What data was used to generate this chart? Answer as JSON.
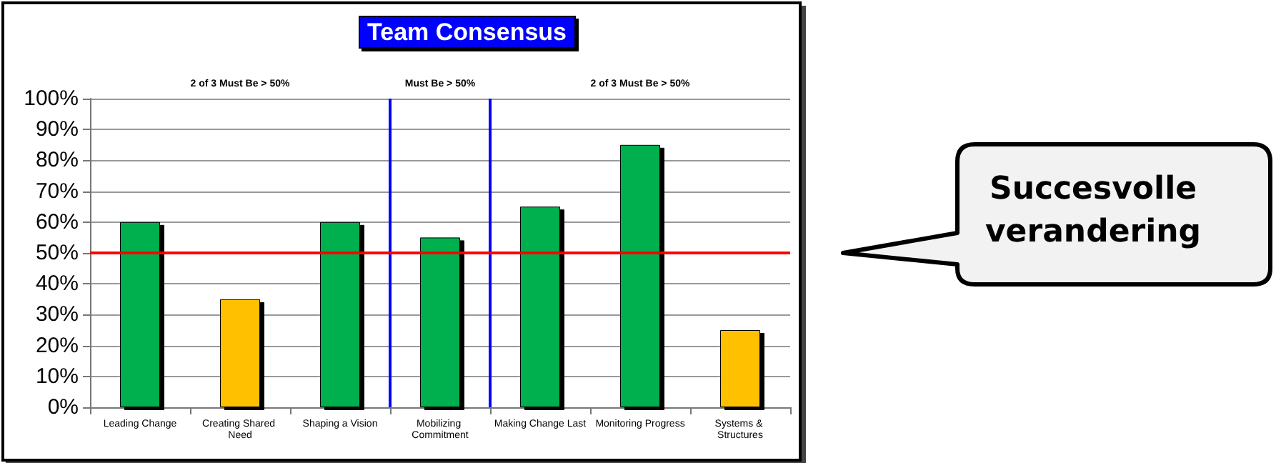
{
  "chart_data": {
    "type": "bar",
    "title": "Team Consensus",
    "categories": [
      "Leading Change",
      "Creating Shared Need",
      "Shaping a Vision",
      "Mobilizing Commitment",
      "Making Change Last",
      "Monitoring Progress",
      "Systems & Structures"
    ],
    "values": [
      60,
      35,
      60,
      55,
      65,
      85,
      25
    ],
    "colors": [
      "#00b050",
      "#ffc000",
      "#00b050",
      "#00b050",
      "#00b050",
      "#00b050",
      "#ffc000"
    ],
    "ylim": [
      0,
      100
    ],
    "yticks": [
      {
        "value": 0,
        "label": "0%"
      },
      {
        "value": 10,
        "label": "10%"
      },
      {
        "value": 20,
        "label": "20%"
      },
      {
        "value": 30,
        "label": "30%"
      },
      {
        "value": 40,
        "label": "40%"
      },
      {
        "value": 50,
        "label": "50%"
      },
      {
        "value": 60,
        "label": "60%"
      },
      {
        "value": 70,
        "label": "70%"
      },
      {
        "value": 80,
        "label": "80%"
      },
      {
        "value": 90,
        "label": "90%"
      },
      {
        "value": 100,
        "label": "100%"
      }
    ],
    "grid": "y",
    "ref_lines": [
      {
        "axis": "y",
        "value": 50,
        "color": "#ff0000"
      }
    ],
    "annotations": [
      "2 of 3 Must Be > 50%",
      "Must Be > 50%",
      "2 of 3 Must Be > 50%",
      "Succesvolle verandering"
    ]
  }
}
